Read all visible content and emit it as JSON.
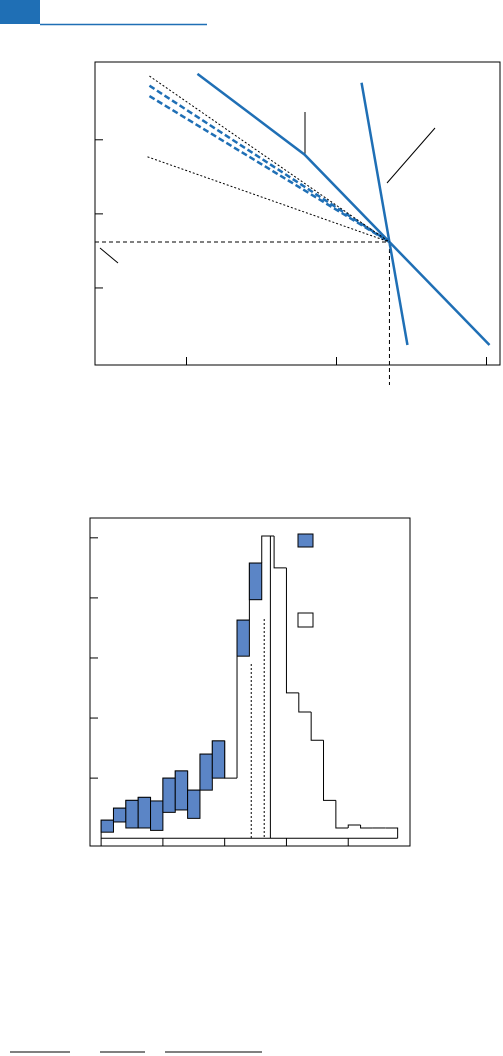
{
  "chart_data": [
    {
      "type": "line",
      "xlim": [
        0.39,
        3.09
      ],
      "ylim": [
        -0.04,
        4.05
      ],
      "xticks": [
        1,
        2,
        3
      ],
      "yticks": [
        1,
        2,
        3
      ],
      "crosshair": {
        "x": 2.353,
        "y": 1.62
      },
      "series": [
        {
          "color": "#1f6fb5",
          "dash": "solid",
          "x": [
            1.073,
            1.787,
            2.353,
            3.02
          ],
          "values": [
            3.89,
            2.8,
            1.62,
            0.23
          ]
        },
        {
          "color": "#1f6fb5",
          "dash": "solid",
          "x": [
            2.167,
            2.473
          ],
          "values": [
            3.77,
            0.23
          ]
        },
        {
          "color": "#1f6fb5",
          "dash": "dashed",
          "x": [
            0.753,
            2.353
          ],
          "values": [
            3.73,
            1.62
          ]
        },
        {
          "color": "#1f6fb5",
          "dash": "dashed",
          "x": [
            0.753,
            2.353
          ],
          "values": [
            3.59,
            1.62
          ]
        },
        {
          "color": "#000000",
          "dash": "dotted",
          "x": [
            0.753,
            2.353
          ],
          "values": [
            3.86,
            1.62
          ]
        },
        {
          "color": "#000000",
          "dash": "dotted",
          "x": [
            0.74,
            2.353
          ],
          "values": [
            2.77,
            1.62
          ]
        }
      ]
    },
    {
      "type": "histogram",
      "xlim": [
        -0.18,
        5.0
      ],
      "ylim": [
        -0.13,
        5.33
      ],
      "xticks": [
        0,
        1,
        2,
        3,
        4
      ],
      "yticks": [
        1,
        2,
        3,
        4,
        5
      ],
      "bins": [
        0,
        0.2,
        0.4,
        0.6,
        0.8,
        1.0,
        1.2,
        1.4,
        1.6,
        1.8,
        2.0,
        2.2,
        2.4,
        2.6,
        2.8,
        3.0,
        3.2,
        3.4,
        3.6,
        3.8,
        4.0,
        4.2,
        4.4,
        4.6,
        4.8
      ],
      "values": [
        0.3,
        0.5,
        0.63,
        0.68,
        0.62,
        1.0,
        1.12,
        0.8,
        1.4,
        1.62,
        1.0,
        3.63,
        4.58,
        5.03,
        4.5,
        2.42,
        2.1,
        1.63,
        0.63,
        0.17,
        0.22,
        0.17,
        0.17,
        0.17
      ],
      "color": "#ffffff",
      "range_color": "#5b85c6",
      "low": [
        0.1,
        0.27,
        0.17,
        0.17,
        0.13,
        0.43,
        0.47,
        0.33,
        0.8,
        1.0,
        null,
        3.03,
        3.97,
        null,
        null,
        null,
        null,
        null,
        null,
        null,
        null,
        null,
        null,
        null
      ],
      "high": [
        0.3,
        0.5,
        0.63,
        0.68,
        0.62,
        1.0,
        1.12,
        0.8,
        1.4,
        1.62,
        null,
        3.63,
        4.58,
        null,
        null,
        null,
        null,
        null,
        null,
        null,
        null,
        null,
        null,
        null
      ],
      "markers": [
        {
          "value": 2.43,
          "dash": "dotted"
        },
        {
          "value": 2.64,
          "dash": "dotted"
        },
        {
          "value": 2.74,
          "dash": "solid"
        }
      ]
    }
  ]
}
